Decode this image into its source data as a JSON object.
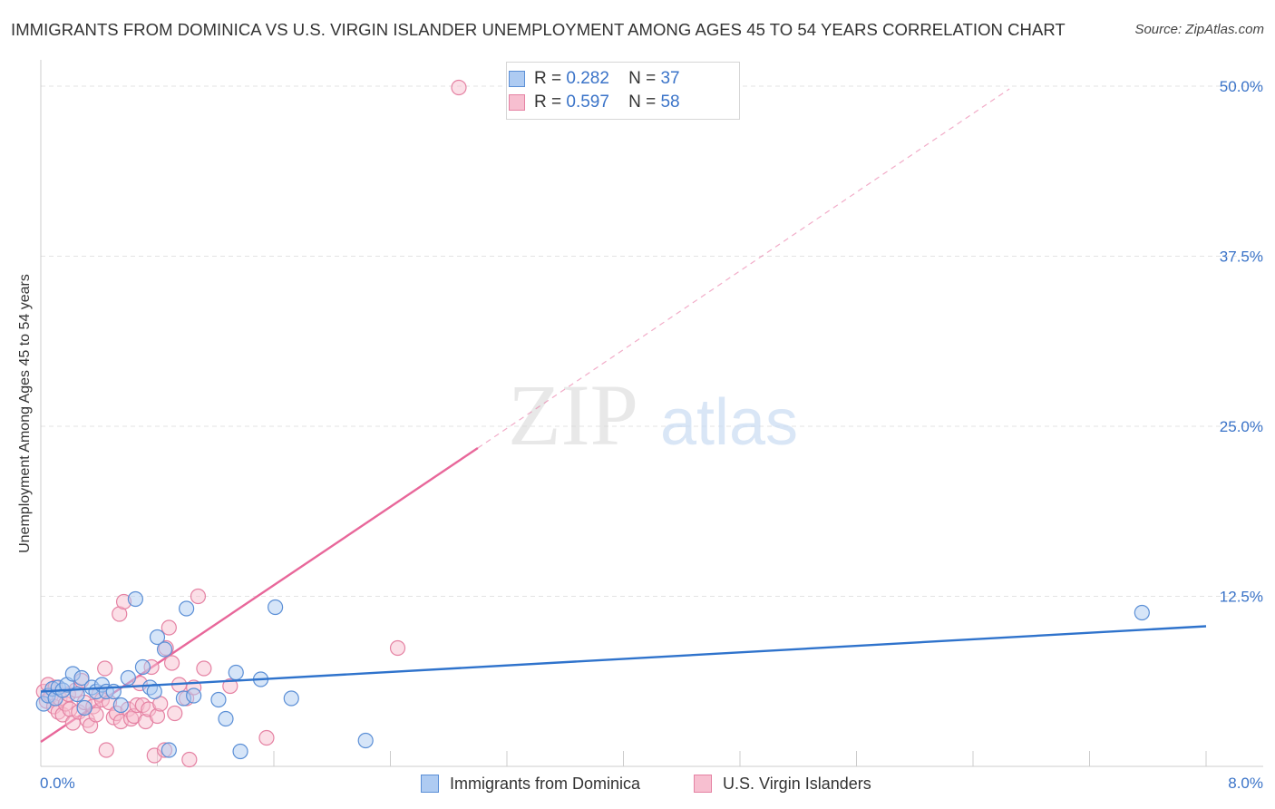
{
  "title": "IMMIGRANTS FROM DOMINICA VS U.S. VIRGIN ISLANDER UNEMPLOYMENT AMONG AGES 45 TO 54 YEARS CORRELATION CHART",
  "source": "Source: ZipAtlas.com",
  "watermark": {
    "zip": "ZIP",
    "atlas": "atlas"
  },
  "legend_stats": [
    {
      "r_label": "R =",
      "r_value": "0.282",
      "n_label": "N =",
      "n_value": "37"
    },
    {
      "r_label": "R =",
      "r_value": "0.597",
      "n_label": "N =",
      "n_value": "58"
    }
  ],
  "colors": {
    "blue_fill": "#aecbf2",
    "blue_stroke": "#5b8fd6",
    "blue_line": "#2f73cc",
    "pink_fill": "#f7bfd0",
    "pink_stroke": "#e582a3",
    "pink_line": "#e8679a",
    "axis_text": "#3a73c8",
    "grid": "#e3e3e3"
  },
  "chart_data": {
    "type": "scatter",
    "title": "IMMIGRANTS FROM DOMINICA VS U.S. VIRGIN ISLANDER UNEMPLOYMENT AMONG AGES 45 TO 54 YEARS CORRELATION CHART",
    "xlabel": "",
    "ylabel": "Unemployment Among Ages 45 to 54 years",
    "xlim": [
      0,
      8
    ],
    "ylim": [
      0,
      51
    ],
    "x_tick_labels": [
      "0.0%",
      "8.0%"
    ],
    "y_ticks": [
      12.5,
      25.0,
      37.5,
      50.0
    ],
    "y_tick_labels": [
      "12.5%",
      "25.0%",
      "37.5%",
      "50.0%"
    ],
    "grid": true,
    "legend_position": "bottom",
    "series": [
      {
        "name": "Immigrants from Dominica",
        "color": "#5b8fd6",
        "r": 0.282,
        "n": 37,
        "trend": {
          "x": [
            0.0,
            8.0
          ],
          "y": [
            5.5,
            10.3
          ]
        },
        "points": [
          [
            0.02,
            4.6
          ],
          [
            0.05,
            5.2
          ],
          [
            0.08,
            5.7
          ],
          [
            0.1,
            5.0
          ],
          [
            0.12,
            5.8
          ],
          [
            0.15,
            5.6
          ],
          [
            0.18,
            6.0
          ],
          [
            0.22,
            6.8
          ],
          [
            0.25,
            5.3
          ],
          [
            0.28,
            6.5
          ],
          [
            0.3,
            4.3
          ],
          [
            0.35,
            5.8
          ],
          [
            0.38,
            5.5
          ],
          [
            0.42,
            6.0
          ],
          [
            0.45,
            5.5
          ],
          [
            0.5,
            5.5
          ],
          [
            0.55,
            4.5
          ],
          [
            0.6,
            6.5
          ],
          [
            0.65,
            12.3
          ],
          [
            0.7,
            7.3
          ],
          [
            0.75,
            5.8
          ],
          [
            0.78,
            5.5
          ],
          [
            0.8,
            9.5
          ],
          [
            0.85,
            8.6
          ],
          [
            0.88,
            1.2
          ],
          [
            0.98,
            5.0
          ],
          [
            1.0,
            11.6
          ],
          [
            1.05,
            5.2
          ],
          [
            1.22,
            4.9
          ],
          [
            1.27,
            3.5
          ],
          [
            1.34,
            6.9
          ],
          [
            1.37,
            1.1
          ],
          [
            1.51,
            6.4
          ],
          [
            1.61,
            11.7
          ],
          [
            1.72,
            5.0
          ],
          [
            2.23,
            1.9
          ],
          [
            7.56,
            11.3
          ]
        ]
      },
      {
        "name": "U.S. Virgin Islanders",
        "color": "#e582a3",
        "r": 0.597,
        "n": 58,
        "trend_solid": {
          "x": [
            0.0,
            3.0
          ],
          "y": [
            1.8,
            23.4
          ]
        },
        "trend_dashed": {
          "x": [
            3.0,
            6.65
          ],
          "y": [
            23.4,
            49.8
          ]
        },
        "points": [
          [
            0.02,
            5.5
          ],
          [
            0.04,
            4.8
          ],
          [
            0.05,
            6.0
          ],
          [
            0.07,
            5.2
          ],
          [
            0.09,
            4.4
          ],
          [
            0.1,
            5.8
          ],
          [
            0.12,
            4.0
          ],
          [
            0.13,
            5.0
          ],
          [
            0.15,
            3.8
          ],
          [
            0.17,
            4.6
          ],
          [
            0.19,
            5.3
          ],
          [
            0.2,
            4.2
          ],
          [
            0.22,
            3.2
          ],
          [
            0.24,
            5.6
          ],
          [
            0.26,
            4.0
          ],
          [
            0.28,
            6.3
          ],
          [
            0.3,
            4.7
          ],
          [
            0.32,
            3.4
          ],
          [
            0.34,
            3.0
          ],
          [
            0.36,
            4.4
          ],
          [
            0.38,
            3.8
          ],
          [
            0.4,
            5.3
          ],
          [
            0.42,
            4.9
          ],
          [
            0.44,
            7.2
          ],
          [
            0.45,
            1.2
          ],
          [
            0.47,
            4.7
          ],
          [
            0.5,
            3.6
          ],
          [
            0.52,
            3.9
          ],
          [
            0.54,
            11.2
          ],
          [
            0.55,
            3.3
          ],
          [
            0.57,
            12.1
          ],
          [
            0.6,
            4.2
          ],
          [
            0.62,
            3.5
          ],
          [
            0.64,
            3.7
          ],
          [
            0.66,
            4.5
          ],
          [
            0.68,
            6.1
          ],
          [
            0.7,
            4.5
          ],
          [
            0.72,
            3.3
          ],
          [
            0.74,
            4.2
          ],
          [
            0.76,
            7.3
          ],
          [
            0.78,
            0.8
          ],
          [
            0.8,
            3.7
          ],
          [
            0.82,
            4.6
          ],
          [
            0.85,
            1.2
          ],
          [
            0.86,
            8.7
          ],
          [
            0.88,
            10.2
          ],
          [
            0.9,
            7.6
          ],
          [
            0.92,
            3.9
          ],
          [
            0.95,
            6.0
          ],
          [
            1.0,
            5.0
          ],
          [
            1.02,
            0.5
          ],
          [
            1.05,
            5.8
          ],
          [
            1.08,
            12.5
          ],
          [
            1.12,
            7.2
          ],
          [
            1.3,
            5.9
          ],
          [
            1.55,
            2.1
          ],
          [
            2.45,
            8.7
          ],
          [
            2.87,
            49.9
          ]
        ]
      }
    ]
  }
}
